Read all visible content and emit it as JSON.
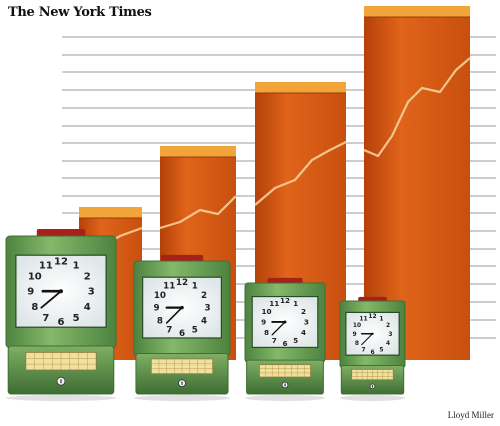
{
  "header": {
    "masthead": "The New York Times"
  },
  "footer": {
    "credit": "Lloyd Miller"
  },
  "illustration": {
    "bar_count": 4,
    "clock_count": 4,
    "colors": {
      "bar_main": "#d8560f",
      "bar_dark": "#b5410a",
      "bar_top": "#f0a43a",
      "line": "#f4c48a",
      "clock_body": "#6fa35a",
      "clock_body_dark": "#3f6f34",
      "clock_top_button": "#a8201a",
      "card_slot": "#f1e0a0",
      "grid": "#7a7a7a"
    },
    "clock_face_numbers": [
      "12",
      "1",
      "2",
      "3",
      "4",
      "5",
      "6",
      "7",
      "8",
      "9",
      "10",
      "11"
    ]
  }
}
